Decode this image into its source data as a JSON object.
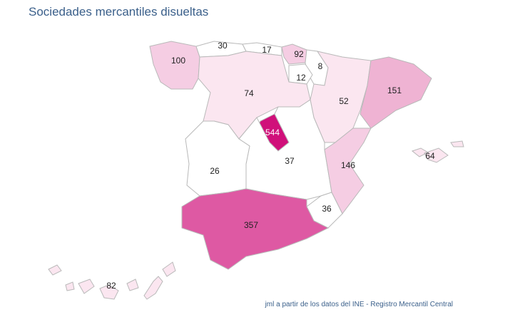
{
  "chart_data": {
    "type": "choropleth",
    "title": "Sociedades mercantiles disueltas",
    "values": [
      100,
      30,
      17,
      92,
      8,
      12,
      74,
      52,
      151,
      544,
      37,
      26,
      146,
      64,
      36,
      357,
      82
    ],
    "colors": [
      "#f5cde3",
      "#ffffff",
      "#ffffff",
      "#f5cde3",
      "#ffffff",
      "#ffffff",
      "#fbe6f0",
      "#fbe6f0",
      "#efb3d3",
      "#d0107a",
      "#ffffff",
      "#ffffff",
      "#f5cde3",
      "#fbe6f0",
      "#ffffff",
      "#de59a3",
      "#fbe6f0"
    ],
    "source": "jml a partir de los datos del INE - Registro Mercantil Central"
  }
}
